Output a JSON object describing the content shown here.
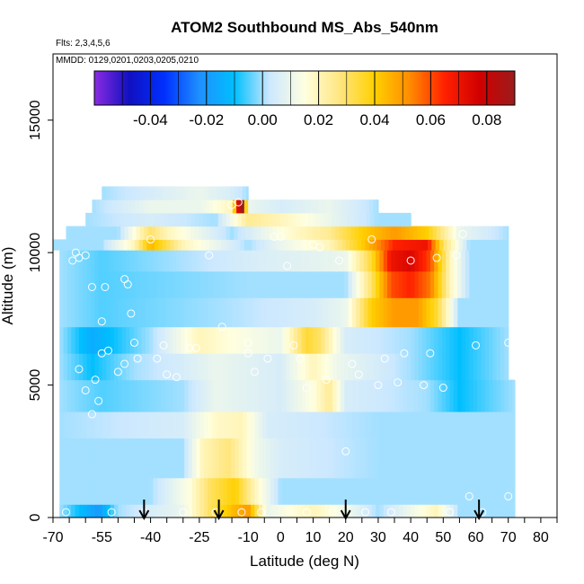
{
  "chart_data": {
    "type": "heatmap",
    "title": "ATOM2 Southbound MS_Abs_540nm",
    "flights_note": "Flts: 2,3,4,5,6",
    "dates_note": "MMDD: 0129,0201,0203,0205,0210",
    "xlabel": "Latitude (deg N)",
    "ylabel": "Altitude (m)",
    "xlim": [
      -70,
      85
    ],
    "ylim": [
      0,
      17500
    ],
    "x_ticks": [
      -70,
      -55,
      -40,
      -25,
      -10,
      0,
      10,
      20,
      30,
      40,
      50,
      60,
      70,
      80
    ],
    "y_ticks": [
      0,
      5000,
      10000,
      15000
    ],
    "colorbar": {
      "range": [
        -0.06,
        0.09
      ],
      "ticks": [
        "-0.04",
        "-0.02",
        "0.00",
        "0.02",
        "0.04",
        "0.06",
        "0.08"
      ],
      "tick_values": [
        -0.04,
        -0.02,
        0.0,
        0.02,
        0.04,
        0.06,
        0.08
      ],
      "colors": [
        "#8a2be2",
        "#1010c0",
        "#0030ff",
        "#1e90ff",
        "#00bfff",
        "#cce8ff",
        "#ffffe0",
        "#ffe680",
        "#ffd000",
        "#ff8c00",
        "#ff2000",
        "#d00000",
        "#9b1c1c"
      ]
    },
    "layers": [
      {
        "ymin": 0,
        "ymax": 500,
        "xmin": -68,
        "xmax": 72,
        "stops": [
          [
            -68,
            0.0
          ],
          [
            -56,
            -0.02
          ],
          [
            -50,
            0.0
          ],
          [
            -30,
            0.01
          ],
          [
            -22,
            0.03
          ],
          [
            -14,
            0.045
          ],
          [
            -10,
            0.05
          ],
          [
            -4,
            0.01
          ],
          [
            10,
            0.02
          ],
          [
            22,
            0.01
          ],
          [
            30,
            0.0
          ],
          [
            48,
            0.02
          ],
          [
            55,
            0.0
          ],
          [
            72,
            0.0
          ]
        ]
      },
      {
        "ymin": 500,
        "ymax": 1500,
        "xmin": -68,
        "xmax": 72,
        "stops": [
          [
            -68,
            0.0
          ],
          [
            -40,
            0.0
          ],
          [
            -28,
            0.015
          ],
          [
            -22,
            0.03
          ],
          [
            -14,
            0.04
          ],
          [
            -8,
            0.02
          ],
          [
            0,
            0.0
          ],
          [
            20,
            0.0
          ],
          [
            30,
            0.0
          ],
          [
            50,
            0.0
          ],
          [
            72,
            0.0
          ]
        ]
      },
      {
        "ymin": 1500,
        "ymax": 3000,
        "xmin": -68,
        "xmax": 72,
        "stops": [
          [
            -68,
            0.0
          ],
          [
            -30,
            0.0
          ],
          [
            -24,
            0.02
          ],
          [
            -16,
            0.028
          ],
          [
            -8,
            0.012
          ],
          [
            0,
            0.005
          ],
          [
            30,
            0.0
          ],
          [
            72,
            0.0
          ]
        ]
      },
      {
        "ymin": 3000,
        "ymax": 4000,
        "xmin": -68,
        "xmax": 72,
        "stops": [
          [
            -68,
            0.0
          ],
          [
            -30,
            0.005
          ],
          [
            -20,
            0.018
          ],
          [
            -12,
            0.02
          ],
          [
            -4,
            0.005
          ],
          [
            30,
            0.0
          ],
          [
            72,
            0.0
          ]
        ]
      },
      {
        "ymin": 4000,
        "ymax": 5200,
        "xmin": -68,
        "xmax": 72,
        "stops": [
          [
            -68,
            0.0
          ],
          [
            -55,
            -0.005
          ],
          [
            -30,
            0.0
          ],
          [
            -20,
            0.01
          ],
          [
            0,
            0.005
          ],
          [
            10,
            0.015
          ],
          [
            15,
            0.025
          ],
          [
            20,
            0.005
          ],
          [
            45,
            0.0
          ],
          [
            55,
            -0.01
          ],
          [
            72,
            0.0
          ]
        ]
      },
      {
        "ymin": 5200,
        "ymax": 6200,
        "xmin": -68,
        "xmax": 70,
        "stops": [
          [
            -68,
            0.0
          ],
          [
            -58,
            -0.01
          ],
          [
            -45,
            0.0
          ],
          [
            -30,
            0.005
          ],
          [
            -20,
            0.01
          ],
          [
            0,
            0.005
          ],
          [
            10,
            0.02
          ],
          [
            18,
            0.01
          ],
          [
            40,
            0.0
          ],
          [
            55,
            -0.01
          ],
          [
            70,
            0.0
          ]
        ]
      },
      {
        "ymin": 6200,
        "ymax": 7200,
        "xmin": -68,
        "xmax": 70,
        "stops": [
          [
            -68,
            0.0
          ],
          [
            -58,
            -0.015
          ],
          [
            -40,
            0.0
          ],
          [
            -25,
            0.02
          ],
          [
            -15,
            0.015
          ],
          [
            0,
            0.01
          ],
          [
            8,
            0.035
          ],
          [
            12,
            0.03
          ],
          [
            20,
            0.005
          ],
          [
            40,
            0.0
          ],
          [
            55,
            -0.01
          ],
          [
            70,
            0.0
          ]
        ]
      },
      {
        "ymin": 7200,
        "ymax": 8300,
        "xmin": -68,
        "xmax": 70,
        "stops": [
          [
            -68,
            0.0
          ],
          [
            -55,
            -0.005
          ],
          [
            -20,
            0.0
          ],
          [
            10,
            0.005
          ],
          [
            20,
            0.01
          ],
          [
            28,
            0.04
          ],
          [
            35,
            0.05
          ],
          [
            42,
            0.05
          ],
          [
            48,
            0.035
          ],
          [
            55,
            0.0
          ],
          [
            70,
            0.0
          ]
        ]
      },
      {
        "ymin": 8300,
        "ymax": 9300,
        "xmin": -68,
        "xmax": 70,
        "stops": [
          [
            -68,
            0.0
          ],
          [
            -55,
            -0.005
          ],
          [
            -10,
            0.0
          ],
          [
            20,
            0.0
          ],
          [
            28,
            0.03
          ],
          [
            34,
            0.06
          ],
          [
            40,
            0.065
          ],
          [
            46,
            0.055
          ],
          [
            52,
            0.02
          ],
          [
            58,
            0.0
          ],
          [
            70,
            0.0
          ]
        ]
      },
      {
        "ymin": 9300,
        "ymax": 10100,
        "xmin": -68,
        "xmax": 70,
        "stops": [
          [
            -68,
            0.0
          ],
          [
            -55,
            -0.005
          ],
          [
            -10,
            0.005
          ],
          [
            20,
            0.01
          ],
          [
            28,
            0.035
          ],
          [
            34,
            0.07
          ],
          [
            40,
            0.075
          ],
          [
            46,
            0.06
          ],
          [
            52,
            0.02
          ],
          [
            58,
            0.0
          ],
          [
            70,
            0.0
          ]
        ]
      },
      {
        "ymin": 10100,
        "ymax": 10500,
        "xmin": -70,
        "xmax": 70,
        "stops": [
          [
            -70,
            0.0
          ],
          [
            -55,
            0.0
          ],
          [
            -45,
            0.02
          ],
          [
            -40,
            0.045
          ],
          [
            -30,
            0.02
          ],
          [
            -10,
            0.0
          ],
          [
            0,
            0.01
          ],
          [
            15,
            0.02
          ],
          [
            25,
            0.04
          ],
          [
            35,
            0.065
          ],
          [
            45,
            0.07
          ],
          [
            50,
            0.03
          ],
          [
            58,
            0.0
          ],
          [
            70,
            0.0
          ]
        ]
      },
      {
        "ymin": 10500,
        "ymax": 11000,
        "xmin": -66,
        "xmax": 70,
        "stops": [
          [
            -66,
            0.0
          ],
          [
            -50,
            0.0
          ],
          [
            -40,
            0.03
          ],
          [
            -35,
            0.02
          ],
          [
            -15,
            0.0
          ],
          [
            0,
            0.015
          ],
          [
            15,
            0.025
          ],
          [
            25,
            0.04
          ],
          [
            35,
            0.05
          ],
          [
            45,
            0.04
          ],
          [
            55,
            0.01
          ],
          [
            70,
            0.0
          ]
        ]
      },
      {
        "ymin": 11000,
        "ymax": 11500,
        "xmin": -60,
        "xmax": 40,
        "stops": [
          [
            -60,
            0.0
          ],
          [
            -40,
            0.005
          ],
          [
            -20,
            0.0
          ],
          [
            -10,
            0.025
          ],
          [
            0,
            0.02
          ],
          [
            15,
            0.01
          ],
          [
            30,
            0.0
          ],
          [
            40,
            0.0
          ]
        ]
      },
      {
        "ymin": 11500,
        "ymax": 12000,
        "xmin": -58,
        "xmax": 30,
        "stops": [
          [
            -58,
            0.0
          ],
          [
            -40,
            0.01
          ],
          [
            -25,
            0.01
          ],
          [
            -15,
            0.02
          ],
          [
            -12,
            0.1
          ],
          [
            -10,
            0.01
          ],
          [
            0,
            0.005
          ],
          [
            15,
            0.01
          ],
          [
            30,
            0.0
          ]
        ]
      },
      {
        "ymin": 12000,
        "ymax": 12500,
        "xmin": -55,
        "xmax": -10,
        "stops": [
          [
            -55,
            0.0
          ],
          [
            -40,
            0.005
          ],
          [
            -25,
            0.01
          ],
          [
            -15,
            0.005
          ],
          [
            -10,
            0.0
          ]
        ]
      }
    ],
    "points": [
      [
        -66,
        200
      ],
      [
        -64,
        9700
      ],
      [
        -62,
        9800
      ],
      [
        -60,
        9900
      ],
      [
        -63,
        10000
      ],
      [
        -58,
        8700
      ],
      [
        -58,
        3900
      ],
      [
        -56,
        4400
      ],
      [
        -57,
        5200
      ],
      [
        -55,
        6200
      ],
      [
        -55,
        7400
      ],
      [
        -53,
        6300
      ],
      [
        -52,
        200
      ],
      [
        -50,
        5500
      ],
      [
        -48,
        9000
      ],
      [
        -47,
        8800
      ],
      [
        -46,
        7700
      ],
      [
        -45,
        6600
      ],
      [
        -44,
        6000
      ],
      [
        -42,
        200
      ],
      [
        -40,
        10500
      ],
      [
        -36,
        6500
      ],
      [
        -35,
        5400
      ],
      [
        -32,
        5300
      ],
      [
        -30,
        200
      ],
      [
        -28,
        6400
      ],
      [
        -26,
        6400
      ],
      [
        -22,
        9900
      ],
      [
        -20,
        200
      ],
      [
        -18,
        7200
      ],
      [
        -15,
        11800
      ],
      [
        -13,
        11900
      ],
      [
        -12,
        200
      ],
      [
        -10,
        6600
      ],
      [
        -10,
        6200
      ],
      [
        -8,
        5500
      ],
      [
        -6,
        200
      ],
      [
        -4,
        6000
      ],
      [
        -2,
        10600
      ],
      [
        0,
        10600
      ],
      [
        2,
        9500
      ],
      [
        4,
        6500
      ],
      [
        6,
        6000
      ],
      [
        8,
        4900
      ],
      [
        8,
        200
      ],
      [
        10,
        10300
      ],
      [
        12,
        10200
      ],
      [
        14,
        5200
      ],
      [
        16,
        200
      ],
      [
        18,
        9700
      ],
      [
        20,
        2500
      ],
      [
        22,
        5800
      ],
      [
        24,
        5400
      ],
      [
        26,
        200
      ],
      [
        28,
        10500
      ],
      [
        30,
        5000
      ],
      [
        32,
        6000
      ],
      [
        34,
        200
      ],
      [
        36,
        5100
      ],
      [
        38,
        6200
      ],
      [
        40,
        9700
      ],
      [
        44,
        5000
      ],
      [
        46,
        6200
      ],
      [
        48,
        9800
      ],
      [
        50,
        4900
      ],
      [
        52,
        200
      ],
      [
        54,
        9900
      ],
      [
        56,
        10700
      ],
      [
        58,
        800
      ],
      [
        60,
        6500
      ],
      [
        62,
        200
      ],
      [
        64,
        11300
      ],
      [
        68,
        11300
      ],
      [
        70,
        6600
      ],
      [
        70,
        800
      ],
      [
        -62,
        5600
      ],
      [
        -60,
        4800
      ],
      [
        -54,
        8700
      ],
      [
        -48,
        5800
      ],
      [
        -38,
        6000
      ]
    ],
    "arrows_x": [
      -42,
      -19,
      20,
      61
    ]
  }
}
